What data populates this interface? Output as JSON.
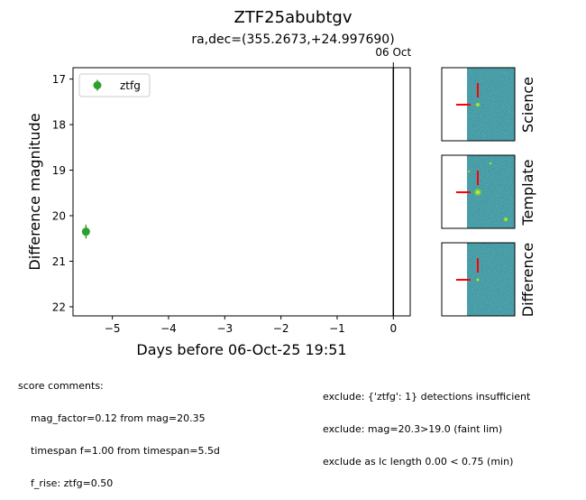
{
  "title": "ZTF25abubtgv",
  "subtitle": "ra,dec=(355.2673,+24.997690)",
  "marker_label": "06 Oct",
  "chart_data": {
    "type": "scatter",
    "xlabel": "Days before 06-Oct-25 19:51",
    "ylabel": "Difference magnitude",
    "xlim": [
      -5.7,
      0.3
    ],
    "ylim": [
      22.2,
      16.75
    ],
    "y_inverted": true,
    "x_ticks": [
      -5,
      -4,
      -3,
      -2,
      -1,
      0
    ],
    "x_tick_labels": [
      "−5",
      "−4",
      "−3",
      "−2",
      "−1",
      "0"
    ],
    "y_ticks": [
      17,
      18,
      19,
      20,
      21,
      22
    ],
    "y_tick_labels": [
      "17",
      "18",
      "19",
      "20",
      "21",
      "22"
    ],
    "grid": false,
    "legend_position": "upper-left",
    "vertical_line_x": 0,
    "series": [
      {
        "name": "ztfg",
        "color": "#2ca02c",
        "x": [
          -5.47
        ],
        "y": [
          20.35
        ],
        "yerr": [
          0.15
        ]
      }
    ]
  },
  "cutouts": [
    {
      "label": "Science"
    },
    {
      "label": "Template"
    },
    {
      "label": "Difference"
    }
  ],
  "score_comments": {
    "header": "score comments:",
    "lines": [
      "mag_factor=0.12 from mag=20.35",
      "timespan f=1.00 from timespan=5.5d",
      "f_rise: ztfg=0.50"
    ]
  },
  "exclude_comments": [
    "exclude: {'ztfg': 1} detections insufficient",
    "exclude: mag=20.3>19.0 (faint lim)",
    "exclude as lc length 0.00 < 0.75 (min)"
  ]
}
